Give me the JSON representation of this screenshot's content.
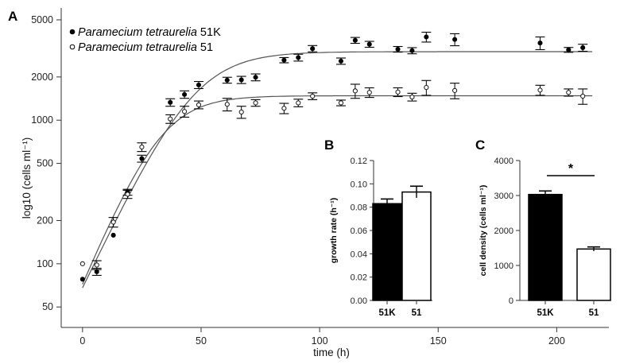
{
  "panel_labels": {
    "a": "A",
    "b": "B",
    "c": "C"
  },
  "legend": [
    {
      "prefix": "Paramecium tetraurelia",
      "suffix": " 51K",
      "marker": "filled-circle"
    },
    {
      "prefix": "Paramecium tetraurelia",
      "suffix": " 51",
      "marker": "open-circle"
    }
  ],
  "colors": {
    "axis": "#333333",
    "curve": "#555555",
    "filled": "#000000",
    "open": "#ffffff"
  },
  "chart_data": [
    {
      "id": "A",
      "type": "scatter",
      "xlabel": "time (h)",
      "ylabel": "log10 (cells ml⁻¹)",
      "xlim": [
        -9,
        222
      ],
      "ylim": [
        36,
        6050
      ],
      "yscale": "log",
      "x_ticks": [
        0,
        50,
        100,
        150,
        200
      ],
      "y_ticks": [
        50,
        100,
        200,
        500,
        1000,
        2000,
        5000
      ],
      "grid": false,
      "legend_position": "top-left",
      "series": [
        {
          "name": "Paramecium tetraurelia 51K",
          "marker": "filled",
          "points": [
            {
              "x": 0,
              "y": 78,
              "err": 0
            },
            {
              "x": 6,
              "y": 88,
              "err": 5
            },
            {
              "x": 13,
              "y": 158,
              "err": 0
            },
            {
              "x": 19,
              "y": 315,
              "err": 15
            },
            {
              "x": 25,
              "y": 540,
              "err": 30
            },
            {
              "x": 37,
              "y": 1330,
              "err": 80
            },
            {
              "x": 43,
              "y": 1510,
              "err": 90
            },
            {
              "x": 49,
              "y": 1760,
              "err": 100
            },
            {
              "x": 61,
              "y": 1900,
              "err": 90
            },
            {
              "x": 67,
              "y": 1910,
              "err": 110
            },
            {
              "x": 73,
              "y": 1990,
              "err": 110
            },
            {
              "x": 85,
              "y": 2620,
              "err": 110
            },
            {
              "x": 91,
              "y": 2730,
              "err": 150
            },
            {
              "x": 97,
              "y": 3150,
              "err": 160
            },
            {
              "x": 109,
              "y": 2580,
              "err": 130
            },
            {
              "x": 115,
              "y": 3600,
              "err": 170
            },
            {
              "x": 121,
              "y": 3380,
              "err": 160
            },
            {
              "x": 133,
              "y": 3120,
              "err": 140
            },
            {
              "x": 139,
              "y": 3050,
              "err": 150
            },
            {
              "x": 145,
              "y": 3800,
              "err": 300
            },
            {
              "x": 157,
              "y": 3650,
              "err": 350
            },
            {
              "x": 193,
              "y": 3450,
              "err": 350
            },
            {
              "x": 205,
              "y": 3090,
              "err": 120
            },
            {
              "x": 211,
              "y": 3200,
              "err": 180
            }
          ]
        },
        {
          "name": "Paramecium tetraurelia 51",
          "marker": "open",
          "points": [
            {
              "x": 0,
              "y": 100,
              "err": 0
            },
            {
              "x": 6,
              "y": 98,
              "err": 7
            },
            {
              "x": 13,
              "y": 195,
              "err": 15
            },
            {
              "x": 19,
              "y": 305,
              "err": 20
            },
            {
              "x": 25,
              "y": 650,
              "err": 45
            },
            {
              "x": 37,
              "y": 1020,
              "err": 70
            },
            {
              "x": 43,
              "y": 1150,
              "err": 100
            },
            {
              "x": 49,
              "y": 1280,
              "err": 80
            },
            {
              "x": 61,
              "y": 1290,
              "err": 130
            },
            {
              "x": 67,
              "y": 1140,
              "err": 110
            },
            {
              "x": 73,
              "y": 1320,
              "err": 70
            },
            {
              "x": 85,
              "y": 1210,
              "err": 100
            },
            {
              "x": 91,
              "y": 1320,
              "err": 80
            },
            {
              "x": 97,
              "y": 1470,
              "err": 80
            },
            {
              "x": 109,
              "y": 1320,
              "err": 60
            },
            {
              "x": 115,
              "y": 1600,
              "err": 180
            },
            {
              "x": 121,
              "y": 1560,
              "err": 120
            },
            {
              "x": 133,
              "y": 1570,
              "err": 110
            },
            {
              "x": 139,
              "y": 1450,
              "err": 90
            },
            {
              "x": 145,
              "y": 1690,
              "err": 200
            },
            {
              "x": 157,
              "y": 1610,
              "err": 200
            },
            {
              "x": 193,
              "y": 1620,
              "err": 130
            },
            {
              "x": 205,
              "y": 1560,
              "err": 90
            },
            {
              "x": 211,
              "y": 1470,
              "err": 180
            }
          ]
        }
      ],
      "fit_curves": [
        {
          "series": "Paramecium tetraurelia 51K",
          "model": "logistic",
          "start": 68,
          "plateau": 3000,
          "rate": 0.08
        },
        {
          "series": "Paramecium tetraurelia 51",
          "model": "logistic",
          "start": 72,
          "plateau": 1480,
          "rate": 0.092
        }
      ]
    },
    {
      "id": "B",
      "type": "bar",
      "categories": [
        "51K",
        "51"
      ],
      "values": [
        0.083,
        0.093
      ],
      "errors": [
        0.004,
        0.005
      ],
      "fills": [
        "#000000",
        "#ffffff"
      ],
      "ylabel": "growth rate (h⁻¹)",
      "ylim": [
        0,
        0.12
      ],
      "y_ticks": [
        0.0,
        0.02,
        0.04,
        0.06,
        0.08,
        0.1,
        0.12
      ],
      "y_tick_labels": [
        "0.00",
        "0.02",
        "0.04",
        "0.06",
        "0.08",
        "0.10",
        "0.12"
      ]
    },
    {
      "id": "C",
      "type": "bar",
      "categories": [
        "51K",
        "51"
      ],
      "values": [
        3030,
        1470
      ],
      "errors": [
        100,
        60
      ],
      "fills": [
        "#000000",
        "#ffffff"
      ],
      "ylabel": "cell density (cells ml⁻¹)",
      "ylim": [
        0,
        4000
      ],
      "y_ticks": [
        0,
        1000,
        2000,
        3000,
        4000
      ],
      "y_tick_labels": [
        "0",
        "1000",
        "2000",
        "3000",
        "4000"
      ],
      "significance": "*"
    }
  ]
}
